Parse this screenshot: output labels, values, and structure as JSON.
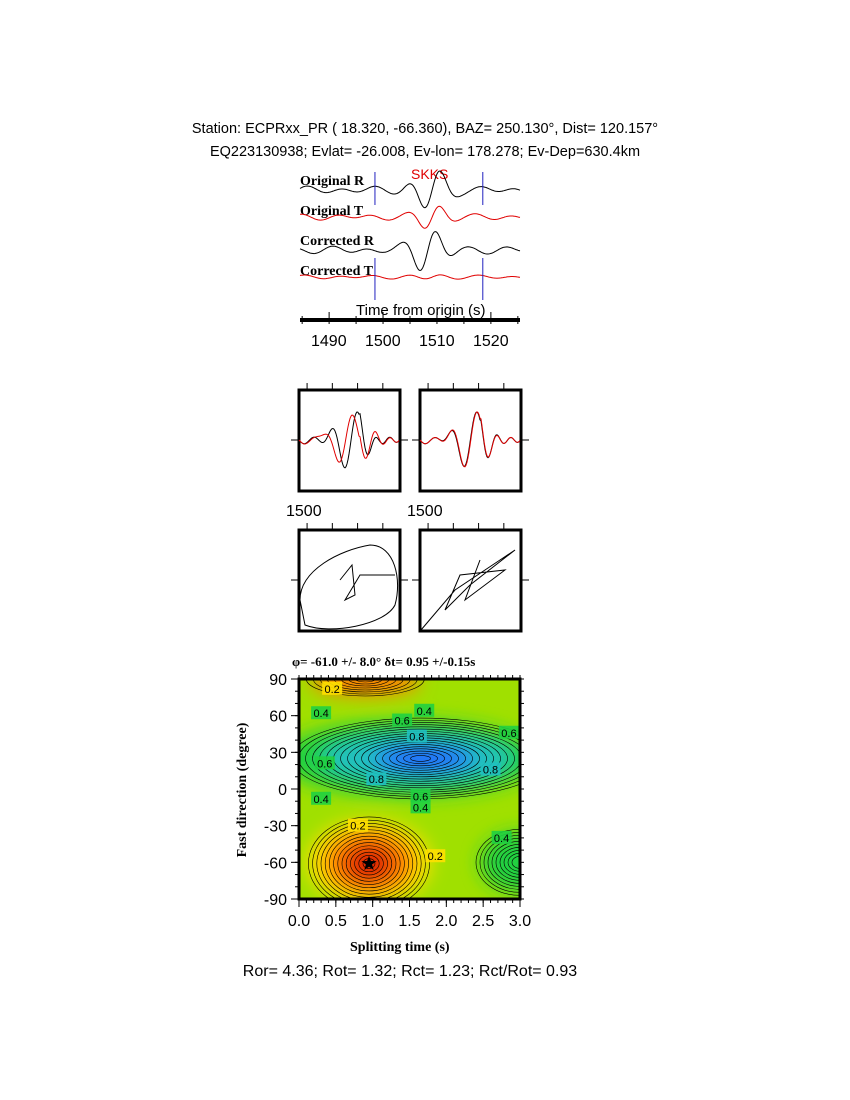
{
  "header": {
    "line1": "Station: ECPRxx_PR (  18.320,  -66.360), BAZ=  250.130°, Dist=  120.157°",
    "line2": "EQ223130938; Evlat= -26.008, Ev-lon= 178.278; Ev-Dep=630.4km"
  },
  "traces": {
    "labels": [
      "Original R",
      "Original T",
      "Corrected R",
      "Corrected T"
    ],
    "phase": "SKKS",
    "xlabel": "Time from origin (s)",
    "ticks": [
      "1490",
      "1500",
      "1510",
      "1520"
    ],
    "xlim": [
      1484.6,
      1525.4
    ],
    "window": [
      1498.5,
      1518.5
    ],
    "colors": {
      "radial": "#000000",
      "transverse": "#e00000",
      "window": "#2020c0"
    }
  },
  "particle_panels": {
    "tick_labels": [
      "1500",
      "1500"
    ]
  },
  "chart_data": {
    "type": "heatmap",
    "title": "φ= -61.0 +/- 8.0° δt= 0.95 +/-0.15s",
    "xlabel": "Splitting time (s)",
    "ylabel": "Fast direction (degree)",
    "xlim": [
      0,
      3
    ],
    "ylim": [
      -90,
      90
    ],
    "xticks": [
      "0.0",
      "0.5",
      "1.0",
      "1.5",
      "2.0",
      "2.5",
      "3.0"
    ],
    "yticks": [
      "90",
      "60",
      "30",
      "0",
      "-30",
      "-60",
      "-90"
    ],
    "best": {
      "dt": 0.95,
      "phi": -61.0
    },
    "contour_labels": [
      {
        "text": "0.2",
        "x": 0.45,
        "y": 82
      },
      {
        "text": "0.4",
        "x": 0.3,
        "y": 62
      },
      {
        "text": "0.4",
        "x": 1.7,
        "y": 64
      },
      {
        "text": "0.6",
        "x": 1.4,
        "y": 56
      },
      {
        "text": "0.8",
        "x": 1.6,
        "y": 43
      },
      {
        "text": "0.6",
        "x": 2.85,
        "y": 46
      },
      {
        "text": "0.6",
        "x": 0.35,
        "y": 21
      },
      {
        "text": "0.8",
        "x": 1.05,
        "y": 8
      },
      {
        "text": "0.8",
        "x": 2.6,
        "y": 16
      },
      {
        "text": "0.6",
        "x": 1.65,
        "y": -6
      },
      {
        "text": "0.4",
        "x": 1.65,
        "y": -15
      },
      {
        "text": "0.4",
        "x": 0.3,
        "y": -8
      },
      {
        "text": "0.2",
        "x": 0.8,
        "y": -30
      },
      {
        "text": "0.2",
        "x": 1.85,
        "y": -55
      },
      {
        "text": "0.4",
        "x": 2.75,
        "y": -40
      }
    ],
    "colormap": [
      "#e02000",
      "#ff8000",
      "#ffe000",
      "#a0e000",
      "#20d040",
      "#20c0c0",
      "#2060ff",
      "#1010c0"
    ]
  },
  "footer": "Ror= 4.36; Rot= 1.32; Rct= 1.23; Rct/Rot= 0.93"
}
